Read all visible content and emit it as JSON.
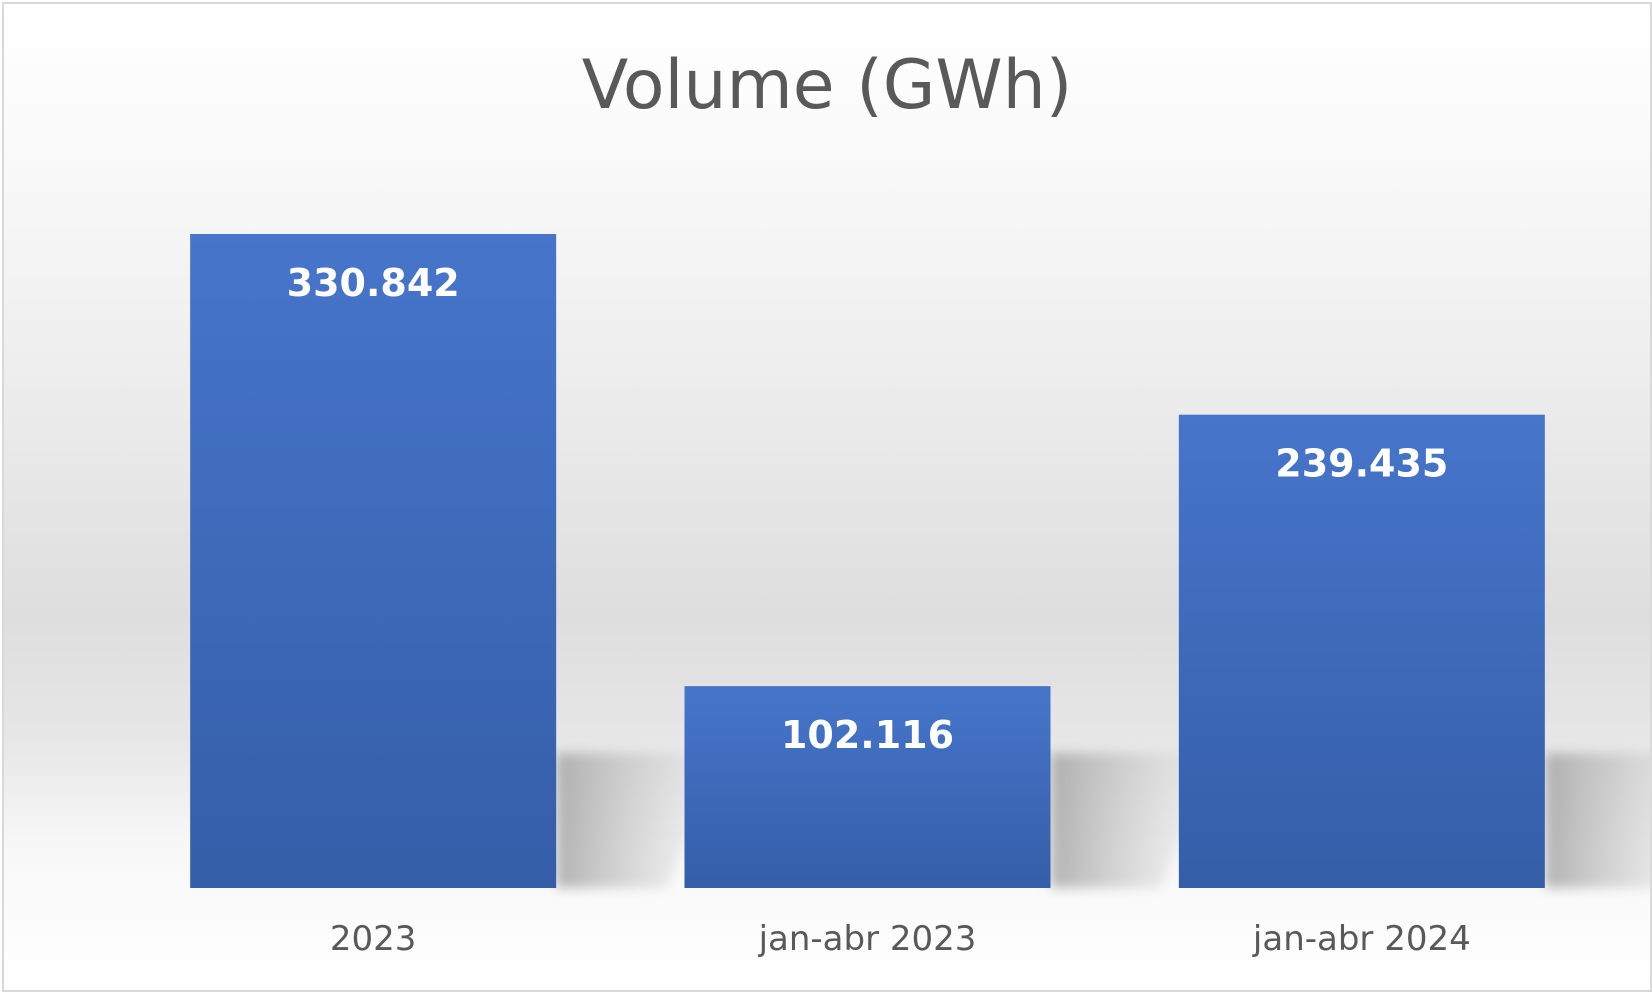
{
  "chart_data": {
    "type": "bar",
    "title": "Volume (GWh)",
    "xlabel": "",
    "ylabel": "",
    "categories": [
      "2023",
      "jan-abr 2023",
      "jan-abr 2024"
    ],
    "values": [
      330842,
      102116,
      239435
    ],
    "value_labels": [
      "330.842",
      "102.116",
      "239.435"
    ],
    "ylim": [
      0,
      330842
    ],
    "grid": false,
    "legend": "none",
    "bar_color": "#4472C4"
  }
}
